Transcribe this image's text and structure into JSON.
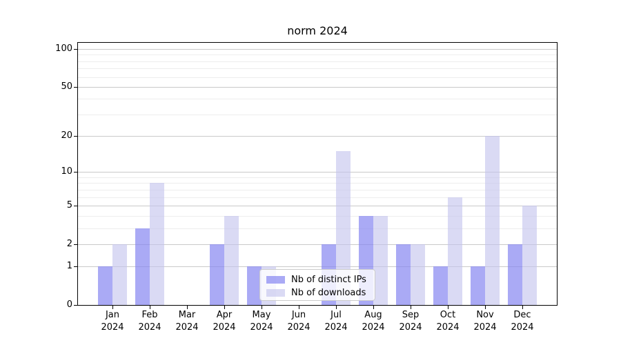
{
  "title": "norm 2024",
  "legend": {
    "items": [
      {
        "label": "Nb of distinct IPs",
        "color": "rgba(134,134,241,0.70)"
      },
      {
        "label": "Nb of downloads",
        "color": "rgba(196,196,238,0.62)"
      }
    ]
  },
  "chart_data": {
    "type": "bar",
    "title": "norm 2024",
    "categories": [
      "Jan 2024",
      "Feb 2024",
      "Mar 2024",
      "Apr 2024",
      "May 2024",
      "Jun 2024",
      "Jul 2024",
      "Aug 2024",
      "Sep 2024",
      "Oct 2024",
      "Nov 2024",
      "Dec 2024"
    ],
    "series": [
      {
        "name": "Nb of distinct IPs",
        "color": "rgba(134,134,241,0.70)",
        "values": [
          1,
          3,
          0,
          2,
          1,
          0,
          2,
          4,
          2,
          1,
          1,
          2
        ]
      },
      {
        "name": "Nb of downloads",
        "color": "rgba(196,196,238,0.62)",
        "values": [
          2,
          8,
          0,
          4,
          1,
          0,
          15,
          4,
          2,
          6,
          20,
          5
        ]
      }
    ],
    "xlabel": "",
    "ylabel": "",
    "yscale": "log1p",
    "ylim": [
      0,
      112
    ],
    "yticks": [
      0,
      1,
      2,
      5,
      10,
      20,
      50,
      100
    ],
    "yticks_minor": [
      3,
      4,
      6,
      7,
      8,
      9,
      30,
      40,
      60,
      70,
      80,
      90
    ],
    "grid": "horizontal",
    "legend_position": "lower-center-inside"
  },
  "colors": {
    "grid_major": "#c9c9c9",
    "grid_minor": "#ededed",
    "spine": "#000000",
    "text": "#000000"
  }
}
